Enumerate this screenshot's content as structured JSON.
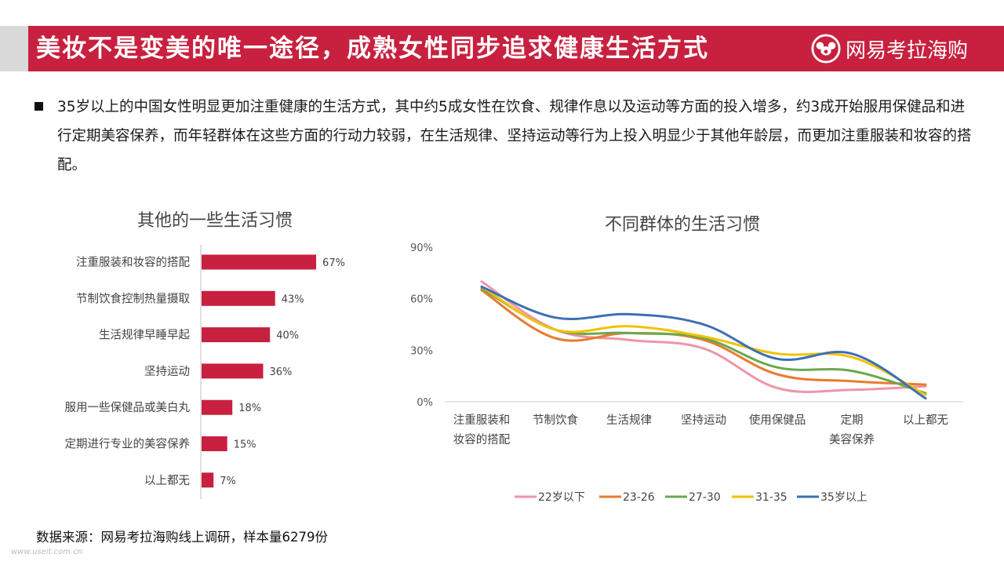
{
  "header": {
    "title": "美妆不是变美的唯一途径，成熟女性同步追求健康生活方式",
    "brand": "网易考拉海购"
  },
  "intro": "35岁以上的中国女性明显更加注重健康的生活方式，其中约5成女性在饮食、规律作息以及运动等方面的投入增多，约3成开始服用保健品和进行定期美容保养，而年轻群体在这些方面的行动力较弱，在生活规律、坚持运动等行为上投入明显少于其他年龄层，而更加注重服装和妆容的搭配。",
  "source": "数据来源：网易考拉海购线上调研，样本量6279份",
  "watermark": "www.useit.com.cn",
  "colors": {
    "brand": "#c8203f",
    "bar": "#c8203f"
  },
  "chart_data": [
    {
      "type": "bar",
      "orientation": "horizontal",
      "title": "其他的一些生活习惯",
      "categories": [
        "注重服装和妆容的搭配",
        "节制饮食控制热量摄取",
        "生活规律早睡早起",
        "坚持运动",
        "服用一些保健品或美白丸",
        "定期进行专业的美容保养",
        "以上都无"
      ],
      "values": [
        67,
        43,
        40,
        36,
        18,
        15,
        7
      ],
      "value_labels": [
        "67%",
        "43%",
        "40%",
        "36%",
        "18%",
        "15%",
        "7%"
      ],
      "unit": "%",
      "color": "#c8203f"
    },
    {
      "type": "line",
      "title": "不同群体的生活习惯",
      "categories": [
        "注重服装和\n妆容的搭配",
        "节制饮食",
        "生活规律",
        "坚持运动",
        "使用保健品",
        "定期\n美容保养",
        "以上都无"
      ],
      "y_ticks": [
        "0%",
        "30%",
        "60%",
        "90%"
      ],
      "ylim": [
        0,
        90
      ],
      "grid": false,
      "legend_position": "bottom",
      "series": [
        {
          "name": "22岁以下",
          "color": "#ee95a8",
          "values": [
            70,
            42,
            36,
            31,
            8,
            7,
            9
          ]
        },
        {
          "name": "23-26",
          "color": "#ea7a30",
          "values": [
            65,
            37,
            40,
            36,
            16,
            12,
            10
          ]
        },
        {
          "name": "27-30",
          "color": "#6aa84f",
          "values": [
            66,
            42,
            40,
            37,
            20,
            18,
            5
          ]
        },
        {
          "name": "31-35",
          "color": "#f2c200",
          "values": [
            67,
            42,
            44,
            38,
            28,
            26,
            4
          ]
        },
        {
          "name": "35岁以上",
          "color": "#3c6fb6",
          "values": [
            67,
            49,
            51,
            45,
            25,
            28,
            2
          ]
        }
      ]
    }
  ]
}
